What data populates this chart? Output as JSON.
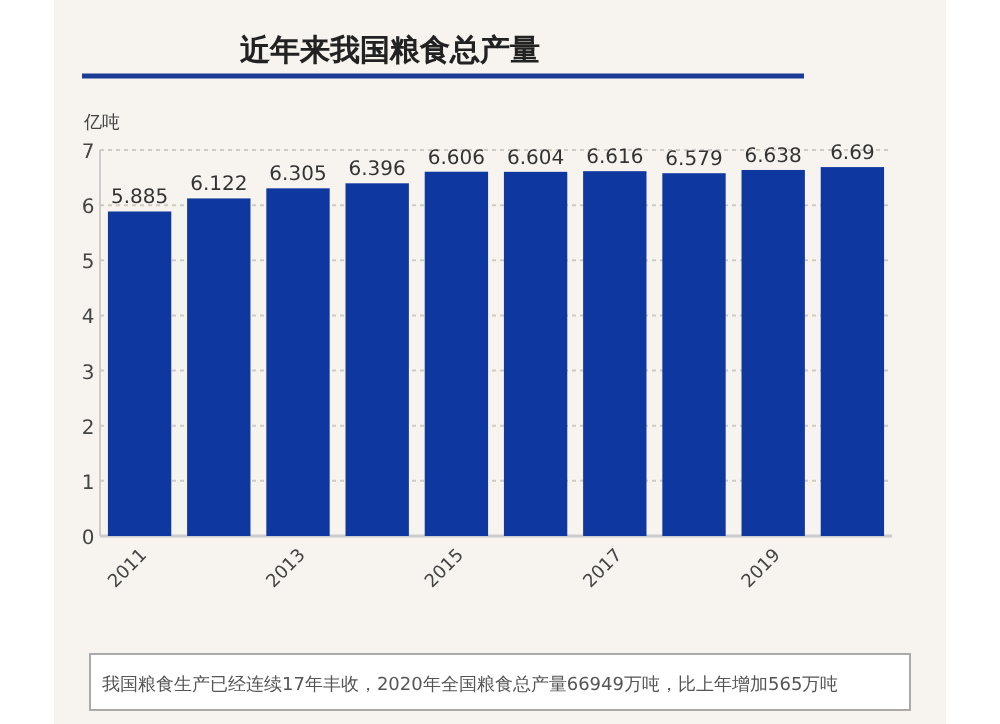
{
  "chart_data": {
    "type": "bar",
    "title": "近年来我国粮食总产量",
    "ylabel": "亿吨",
    "categories": [
      "2011",
      null,
      "2013",
      null,
      "2015",
      null,
      "2017",
      null,
      "2019",
      null
    ],
    "values": [
      5.885,
      6.122,
      6.305,
      6.396,
      6.606,
      6.604,
      6.616,
      6.579,
      6.638,
      6.69
    ],
    "color": "#0f37a0",
    "ylim": [
      0,
      7
    ],
    "yticks": [
      0,
      1,
      2,
      3,
      4,
      5,
      6,
      7
    ],
    "grid": "y",
    "data_labels": true,
    "annotations": [
      "我国粮食生产已经连续17年丰收，2020年全国粮食总产量66949万吨，比上年增加565万吨"
    ]
  }
}
